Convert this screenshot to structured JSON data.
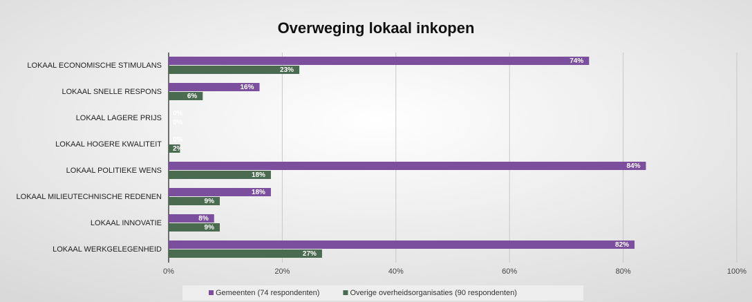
{
  "chart_data": {
    "type": "barh",
    "title": "Overweging lokaal inkopen",
    "categories": [
      "LOKAAL ECONOMISCHE STIMULANS",
      "LOKAAL SNELLE RESPONS",
      "LOKAAL LAGERE PRIJS",
      "LOKAAL HOGERE KWALITEIT",
      "LOKAAL POLITIEKE WENS",
      "LOKAAL MILIEUTECHNISCHE REDENEN",
      "LOKAAL INNOVATIE",
      "LOKAAL WERKGELEGENHEID"
    ],
    "series": [
      {
        "name": "Gemeenten (74 respondenten)",
        "color": "#7b4f9e",
        "values": [
          74,
          16,
          0,
          0,
          84,
          18,
          8,
          82
        ],
        "value_labels": [
          "74%",
          "16%",
          "0%",
          "0%",
          "84%",
          "18%",
          "8%",
          "82%"
        ]
      },
      {
        "name": "Overige overheidsorganisaties (90 respondenten)",
        "color": "#4b6b50",
        "values": [
          23,
          6,
          0,
          2,
          18,
          9,
          9,
          27
        ],
        "value_labels": [
          "23%",
          "6%",
          "0%",
          "2%",
          "18%",
          "9%",
          "9%",
          "27%"
        ]
      }
    ],
    "xlim": [
      0,
      100
    ],
    "xticks": [
      {
        "value": 0,
        "label": "0%"
      },
      {
        "value": 20,
        "label": "20%"
      },
      {
        "value": 40,
        "label": "40%"
      },
      {
        "value": 60,
        "label": "60%"
      },
      {
        "value": 80,
        "label": "80%"
      },
      {
        "value": 100,
        "label": "100%"
      }
    ],
    "grid": true,
    "legend": "bottom"
  }
}
